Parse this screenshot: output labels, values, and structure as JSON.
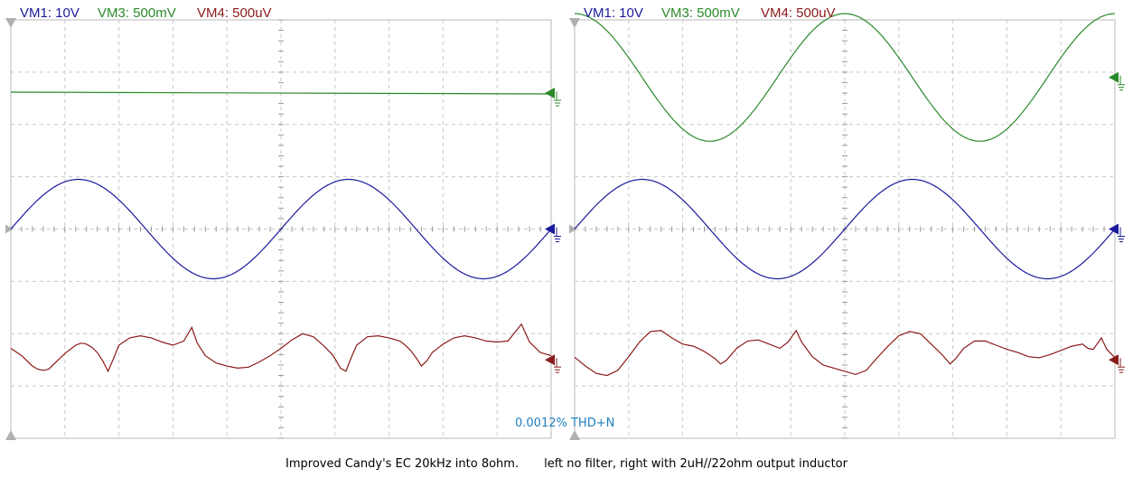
{
  "caption": {
    "left": "Improved Candy's EC 20kHz into 8ohm.",
    "right": "left no filter, right with 2uH//22ohm output inductor"
  },
  "colors": {
    "vm1": "#1a1a9c",
    "vm3": "#2a8a2a",
    "vm4": "#8b1a1a",
    "grid": "#c8c8c8",
    "frame": "#b8b8b8",
    "thd": "#1f7fbf"
  },
  "chart_data": [
    {
      "type": "line",
      "title": "",
      "legend": [
        "VM1: 10V",
        "VM3: 500mV",
        "VM4: 500uV"
      ],
      "annotation": "0.0012% THD+N",
      "grid": true,
      "x": {
        "divisions": 10
      },
      "y": {
        "divisions": 8
      },
      "series": [
        {
          "name": "VM1",
          "scale": "10V",
          "color": "#1a1a9c",
          "kind": "sine",
          "cycles": 2,
          "amplitude_div": 0.95,
          "offset_div": 0,
          "phase": 0
        },
        {
          "name": "VM3",
          "scale": "500mV",
          "color": "#2a8a2a",
          "kind": "flat",
          "offset_div": 2.6
        },
        {
          "name": "VM4",
          "scale": "500uV",
          "color": "#8b1a1a",
          "kind": "points",
          "offset_div": -2.5,
          "points": [
            [
              0,
              0.22
            ],
            [
              0.2,
              0.08
            ],
            [
              0.4,
              -0.12
            ],
            [
              0.5,
              -0.18
            ],
            [
              0.6,
              -0.2
            ],
            [
              0.7,
              -0.18
            ],
            [
              0.8,
              -0.08
            ],
            [
              1.0,
              0.12
            ],
            [
              1.2,
              0.28
            ],
            [
              1.3,
              0.32
            ],
            [
              1.4,
              0.3
            ],
            [
              1.5,
              0.24
            ],
            [
              1.6,
              0.14
            ],
            [
              1.7,
              -0.02
            ],
            [
              1.8,
              -0.22
            ],
            [
              1.9,
              0.02
            ],
            [
              2.0,
              0.28
            ],
            [
              2.2,
              0.42
            ],
            [
              2.4,
              0.46
            ],
            [
              2.6,
              0.42
            ],
            [
              2.8,
              0.34
            ],
            [
              3.0,
              0.28
            ],
            [
              3.2,
              0.36
            ],
            [
              3.35,
              0.62
            ],
            [
              3.45,
              0.32
            ],
            [
              3.6,
              0.08
            ],
            [
              3.8,
              -0.06
            ],
            [
              4.0,
              -0.12
            ],
            [
              4.2,
              -0.16
            ],
            [
              4.4,
              -0.14
            ],
            [
              4.6,
              -0.04
            ],
            [
              4.8,
              0.08
            ],
            [
              5.0,
              0.22
            ],
            [
              5.2,
              0.38
            ],
            [
              5.4,
              0.5
            ],
            [
              5.6,
              0.44
            ],
            [
              5.8,
              0.26
            ],
            [
              5.95,
              0.1
            ],
            [
              6.0,
              0.02
            ],
            [
              6.1,
              -0.16
            ],
            [
              6.2,
              -0.22
            ],
            [
              6.3,
              0.04
            ],
            [
              6.4,
              0.28
            ],
            [
              6.6,
              0.44
            ],
            [
              6.8,
              0.46
            ],
            [
              7.0,
              0.42
            ],
            [
              7.2,
              0.36
            ],
            [
              7.3,
              0.28
            ],
            [
              7.4,
              0.18
            ],
            [
              7.5,
              0.04
            ],
            [
              7.6,
              -0.12
            ],
            [
              7.7,
              -0.02
            ],
            [
              7.8,
              0.14
            ],
            [
              8.0,
              0.3
            ],
            [
              8.2,
              0.42
            ],
            [
              8.4,
              0.46
            ],
            [
              8.6,
              0.42
            ],
            [
              8.8,
              0.36
            ],
            [
              9.0,
              0.34
            ],
            [
              9.2,
              0.36
            ],
            [
              9.45,
              0.68
            ],
            [
              9.6,
              0.34
            ],
            [
              9.8,
              0.14
            ],
            [
              10,
              0.08
            ]
          ]
        }
      ]
    },
    {
      "type": "line",
      "title": "",
      "legend": [
        "VM1: 10V",
        "VM3: 500mV",
        "VM4: 500uV"
      ],
      "grid": true,
      "x": {
        "divisions": 10
      },
      "y": {
        "divisions": 8
      },
      "series": [
        {
          "name": "VM1",
          "scale": "10V",
          "color": "#1a1a9c",
          "kind": "sine",
          "cycles": 2,
          "amplitude_div": 0.95,
          "offset_div": 0,
          "phase": 0
        },
        {
          "name": "VM3",
          "scale": "500mV",
          "color": "#2a8a2a",
          "kind": "sine",
          "cycles": 2,
          "amplitude_div": 1.22,
          "offset_div": 2.9,
          "phase": 90
        },
        {
          "name": "VM4",
          "scale": "500uV",
          "color": "#8b1a1a",
          "kind": "points",
          "offset_div": -2.5,
          "points": [
            [
              0,
              0.05
            ],
            [
              0.2,
              -0.12
            ],
            [
              0.4,
              -0.26
            ],
            [
              0.6,
              -0.3
            ],
            [
              0.8,
              -0.2
            ],
            [
              1.0,
              0.06
            ],
            [
              1.2,
              0.34
            ],
            [
              1.4,
              0.54
            ],
            [
              1.6,
              0.56
            ],
            [
              1.8,
              0.42
            ],
            [
              2.0,
              0.3
            ],
            [
              2.2,
              0.26
            ],
            [
              2.4,
              0.16
            ],
            [
              2.6,
              0.02
            ],
            [
              2.7,
              -0.08
            ],
            [
              2.8,
              -0.02
            ],
            [
              3.0,
              0.22
            ],
            [
              3.2,
              0.36
            ],
            [
              3.4,
              0.38
            ],
            [
              3.6,
              0.3
            ],
            [
              3.8,
              0.22
            ],
            [
              3.95,
              0.34
            ],
            [
              4.1,
              0.56
            ],
            [
              4.2,
              0.34
            ],
            [
              4.4,
              0.06
            ],
            [
              4.6,
              -0.1
            ],
            [
              4.8,
              -0.16
            ],
            [
              5.0,
              -0.22
            ],
            [
              5.2,
              -0.28
            ],
            [
              5.4,
              -0.2
            ],
            [
              5.6,
              0.04
            ],
            [
              5.8,
              0.26
            ],
            [
              6.0,
              0.46
            ],
            [
              6.2,
              0.54
            ],
            [
              6.4,
              0.5
            ],
            [
              6.6,
              0.3
            ],
            [
              6.8,
              0.1
            ],
            [
              6.95,
              -0.08
            ],
            [
              7.05,
              0.02
            ],
            [
              7.2,
              0.22
            ],
            [
              7.4,
              0.36
            ],
            [
              7.6,
              0.36
            ],
            [
              7.8,
              0.28
            ],
            [
              8.0,
              0.2
            ],
            [
              8.2,
              0.14
            ],
            [
              8.4,
              0.06
            ],
            [
              8.6,
              0.04
            ],
            [
              8.8,
              0.1
            ],
            [
              9.0,
              0.18
            ],
            [
              9.2,
              0.26
            ],
            [
              9.4,
              0.3
            ],
            [
              9.5,
              0.22
            ],
            [
              9.6,
              0.2
            ],
            [
              9.75,
              0.42
            ],
            [
              9.85,
              0.2
            ],
            [
              10,
              0.04
            ]
          ]
        }
      ]
    }
  ]
}
